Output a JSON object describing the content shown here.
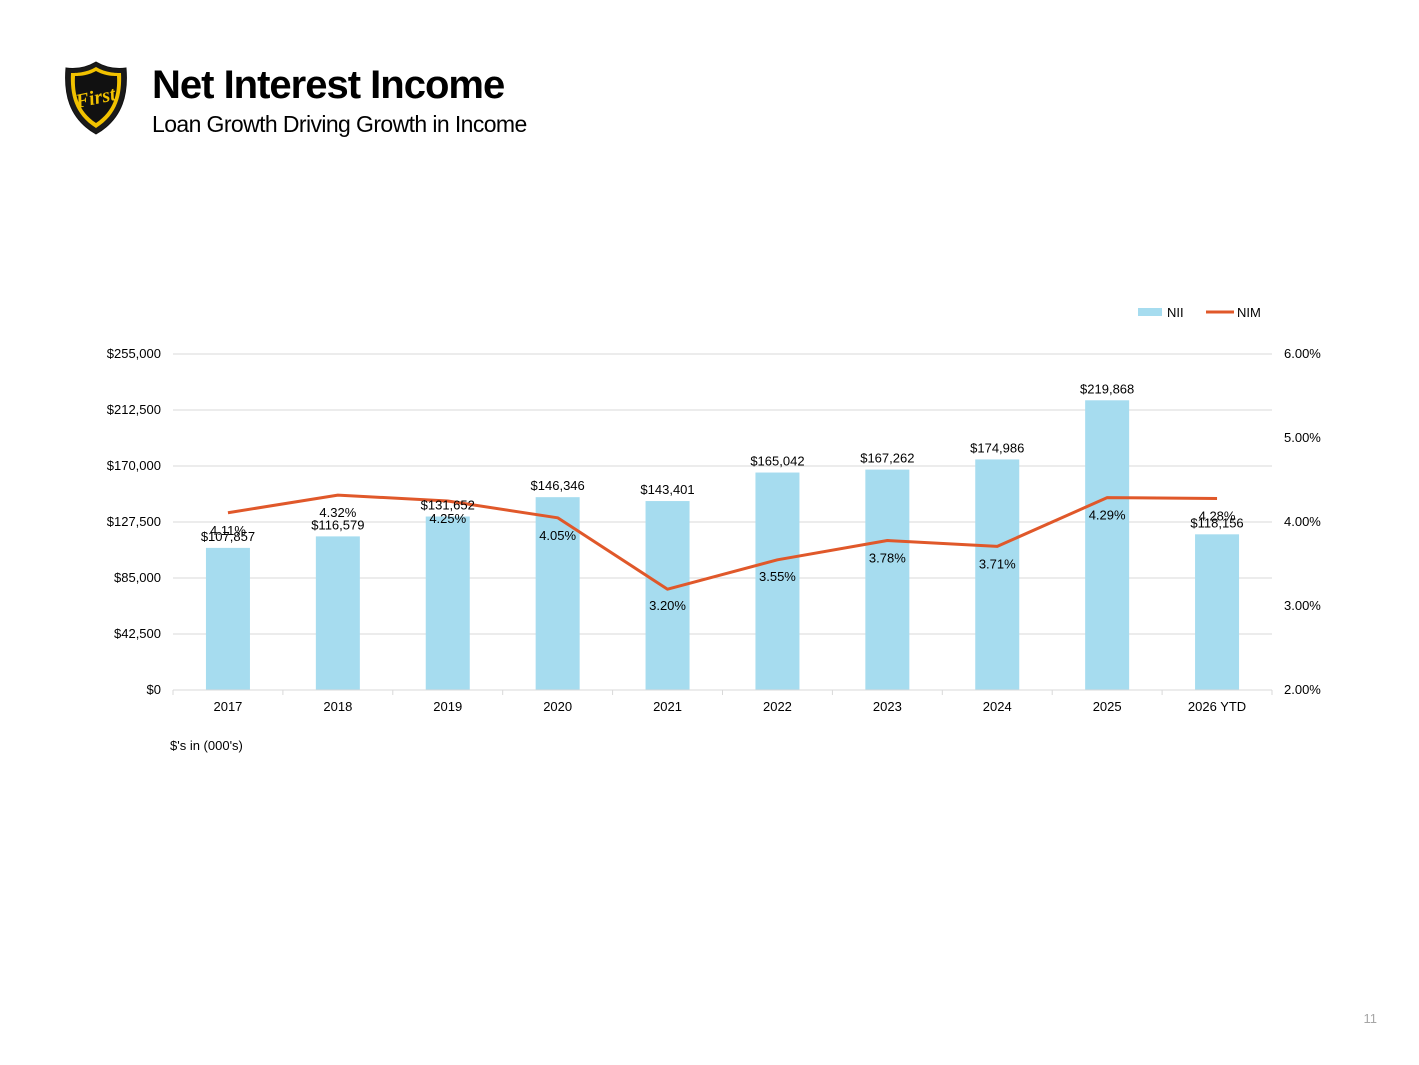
{
  "header": {
    "title": "Net Interest Income",
    "subtitle": "Loan Growth Driving Growth in Income",
    "logo_text": "First"
  },
  "chart_data": {
    "type": "bar",
    "categories": [
      "2017",
      "2018",
      "2019",
      "2020",
      "2021",
      "2022",
      "2023",
      "2024",
      "2025",
      "2026 YTD"
    ],
    "series": [
      {
        "name": "NII",
        "type": "bar",
        "axis": "left",
        "color": "#a6dcef",
        "values": [
          107857,
          116579,
          131652,
          146346,
          143401,
          165042,
          167262,
          174986,
          219868,
          118156
        ],
        "labels": [
          "$107,857",
          "$116,579",
          "$131,652",
          "$146,346",
          "$143,401",
          "$165,042",
          "$167,262",
          "$174,986",
          "$219,868",
          "$118,156"
        ]
      },
      {
        "name": "NIM",
        "type": "line",
        "axis": "right",
        "color": "#e0582a",
        "values": [
          4.11,
          4.32,
          4.25,
          4.05,
          3.2,
          3.55,
          3.78,
          3.71,
          4.29,
          4.28
        ],
        "labels": [
          "4.11%",
          "4.32%",
          "4.25%",
          "4.05%",
          "3.20%",
          "3.55%",
          "3.78%",
          "3.71%",
          "4.29%",
          "4.28%"
        ]
      }
    ],
    "y_left": {
      "min": 0,
      "max": 255000,
      "ticks": [
        0,
        42500,
        85000,
        127500,
        170000,
        212500,
        255000
      ],
      "tick_labels": [
        "$0",
        "$42,500",
        "$85,000",
        "$127,500",
        "$170,000",
        "$212,500",
        "$255,000"
      ]
    },
    "y_right": {
      "min": 2.0,
      "max": 6.0,
      "ticks": [
        2,
        3,
        4,
        5,
        6
      ],
      "tick_labels": [
        "2.00%",
        "3.00%",
        "4.00%",
        "5.00%",
        "6.00%"
      ]
    },
    "grid": true,
    "legend": "top-right",
    "gridline_color": "#d9d9d9"
  },
  "footer": {
    "note": "$'s in (000's)",
    "page_number": "11"
  }
}
